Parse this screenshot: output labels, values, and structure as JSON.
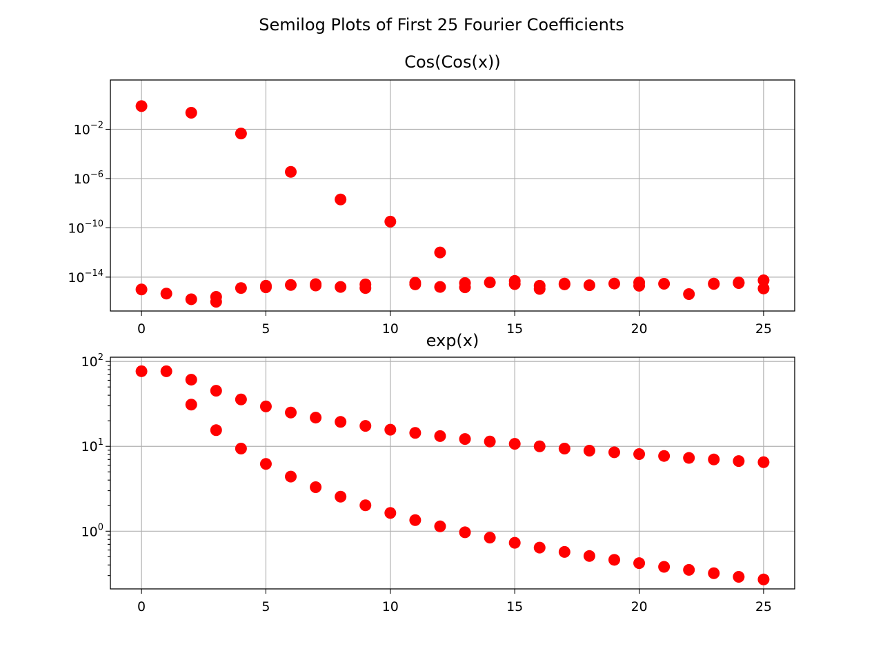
{
  "figure": {
    "suptitle": "Semilog Plots of First 25 Fourier Coefficients",
    "marker_color": "#ff0000"
  },
  "chart_data": [
    {
      "type": "scatter",
      "title": "Cos(Cos(x))",
      "xlabel": "",
      "ylabel": "",
      "yscale": "log",
      "xlim": [
        -1.25,
        26.25
      ],
      "ylim_log10": [
        -16.75,
        2.0
      ],
      "grid": true,
      "x_ticks": [
        "0",
        "5",
        "10",
        "15",
        "20",
        "25"
      ],
      "y_ticks": [
        {
          "base": "10",
          "exp": "−2",
          "log10": -2
        },
        {
          "base": "10",
          "exp": "−6",
          "log10": -6
        },
        {
          "base": "10",
          "exp": "−10",
          "log10": -10
        },
        {
          "base": "10",
          "exp": "−14",
          "log10": -14
        }
      ],
      "series": [
        {
          "values": [
            [
              0,
              0.76
            ],
            [
              1,
              4.6e-16
            ],
            [
              2,
              1.6e-16
            ],
            [
              3,
              2.5e-16
            ],
            [
              4,
              1.3e-15
            ],
            [
              5,
              1.5e-15
            ],
            [
              6,
              3.5e-06
            ],
            [
              7,
              2.1e-15
            ],
            [
              8,
              1.6e-15
            ],
            [
              9,
              1.3e-15
            ],
            [
              10,
              3.2e-10
            ],
            [
              11,
              2.6e-15
            ],
            [
              12,
              1.6e-15
            ],
            [
              13,
              1.5e-15
            ],
            [
              14,
              3.7e-15
            ],
            [
              15,
              2.7e-15
            ],
            [
              16,
              1.1e-15
            ],
            [
              17,
              3e-15
            ],
            [
              18,
              2.2e-15
            ],
            [
              19,
              3e-15
            ],
            [
              20,
              2e-15
            ],
            [
              21,
              2.9e-15
            ],
            [
              22,
              4.2e-16
            ],
            [
              23,
              2.8e-15
            ],
            [
              24,
              3.7e-15
            ],
            [
              25,
              1.2e-15
            ]
          ]
        },
        {
          "values": [
            [
              0,
              1e-15
            ],
            [
              2,
              0.22
            ],
            [
              3,
              1e-16
            ],
            [
              4,
              0.0045
            ],
            [
              5,
              2e-15
            ],
            [
              6,
              2.3e-15
            ],
            [
              7,
              2.7e-15
            ],
            [
              8,
              2e-08
            ],
            [
              9,
              2.6e-15
            ],
            [
              11,
              3.5e-15
            ],
            [
              12,
              1e-12
            ],
            [
              13,
              3.3e-15
            ],
            [
              15,
              4.9e-15
            ],
            [
              16,
              2e-15
            ],
            [
              17,
              2.6e-15
            ],
            [
              20,
              3.7e-15
            ],
            [
              23,
              3e-15
            ],
            [
              24,
              3.3e-15
            ],
            [
              25,
              5.5e-15
            ]
          ]
        }
      ]
    },
    {
      "type": "scatter",
      "title": "exp(x)",
      "xlabel": "",
      "ylabel": "",
      "yscale": "log",
      "xlim": [
        -1.25,
        26.25
      ],
      "ylim_log10": [
        -0.68,
        2.05
      ],
      "grid": true,
      "x_ticks": [
        "0",
        "5",
        "10",
        "15",
        "20",
        "25"
      ],
      "y_ticks": [
        {
          "base": "10",
          "exp": "2",
          "log10": 2
        },
        {
          "base": "10",
          "exp": "1",
          "log10": 1
        },
        {
          "base": "10",
          "exp": "0",
          "log10": 0
        }
      ],
      "series": [
        {
          "values": [
            [
              0,
              76.7
            ],
            [
              1,
              76.6
            ],
            [
              2,
              61.0
            ],
            [
              3,
              45.2
            ],
            [
              4,
              35.7
            ],
            [
              5,
              29.5
            ],
            [
              6,
              25.0
            ],
            [
              7,
              21.8
            ],
            [
              8,
              19.4
            ],
            [
              9,
              17.4
            ],
            [
              10,
              15.7
            ],
            [
              11,
              14.4
            ],
            [
              12,
              13.2
            ],
            [
              13,
              12.2
            ],
            [
              14,
              11.4
            ],
            [
              15,
              10.7
            ],
            [
              16,
              10.0
            ],
            [
              17,
              9.4
            ],
            [
              18,
              8.9
            ],
            [
              19,
              8.5
            ],
            [
              20,
              8.1
            ],
            [
              21,
              7.7
            ],
            [
              22,
              7.3
            ],
            [
              23,
              7.0
            ],
            [
              24,
              6.7
            ],
            [
              25,
              6.5
            ]
          ]
        },
        {
          "values": [
            [
              2,
              31.0
            ],
            [
              3,
              15.5
            ],
            [
              4,
              9.4
            ],
            [
              5,
              6.2
            ],
            [
              6,
              4.4
            ],
            [
              7,
              3.3
            ],
            [
              8,
              2.55
            ],
            [
              9,
              2.02
            ],
            [
              10,
              1.64
            ],
            [
              11,
              1.35
            ],
            [
              12,
              1.14
            ],
            [
              13,
              0.97
            ],
            [
              14,
              0.84
            ],
            [
              15,
              0.73
            ],
            [
              16,
              0.64
            ],
            [
              17,
              0.57
            ],
            [
              18,
              0.51
            ],
            [
              19,
              0.46
            ],
            [
              20,
              0.42
            ],
            [
              21,
              0.38
            ],
            [
              22,
              0.35
            ],
            [
              23,
              0.32
            ],
            [
              24,
              0.29
            ],
            [
              25,
              0.27
            ]
          ]
        }
      ]
    }
  ]
}
